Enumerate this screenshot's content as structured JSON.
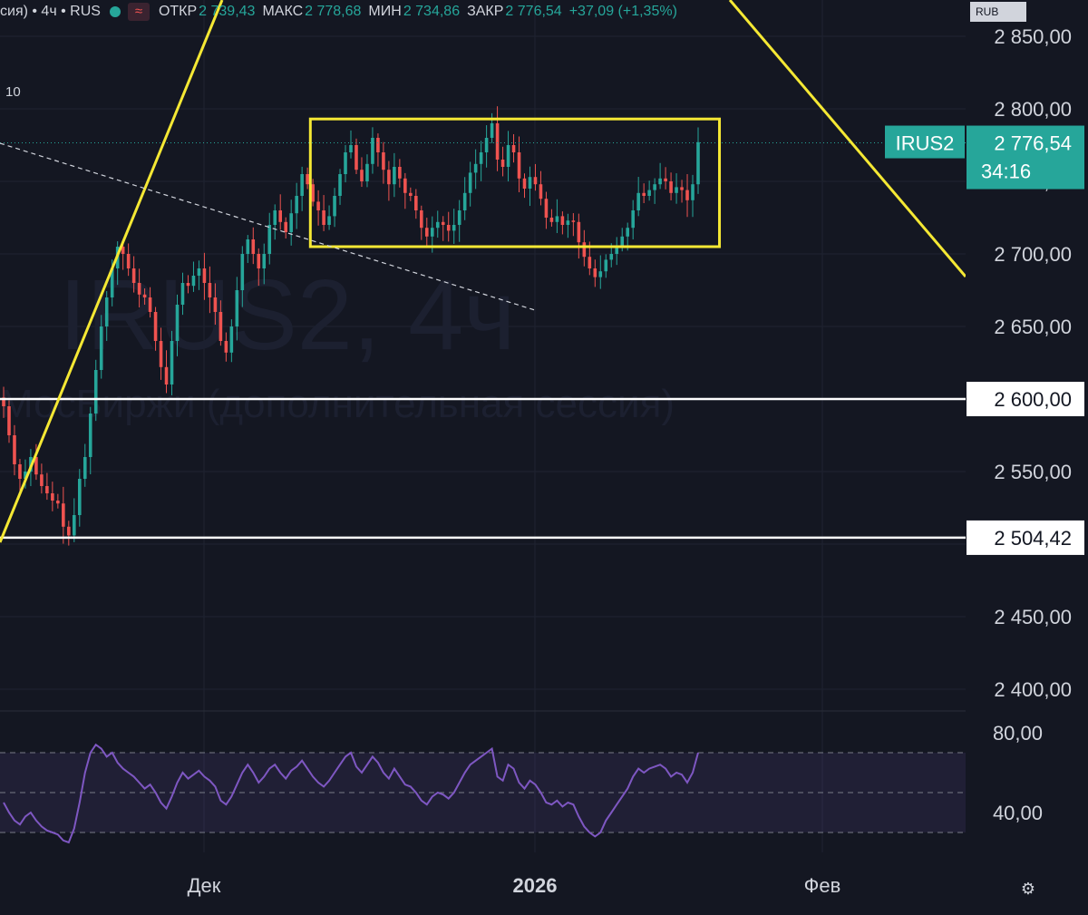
{
  "header": {
    "symbol_text": "сия) • 4ч • RUS",
    "open_label": "ОТКР",
    "open_value": "2 739,43",
    "high_label": "МАКС",
    "high_value": "2 778,68",
    "low_label": "МИН",
    "low_value": "2 734,86",
    "close_label": "ЗАКР",
    "close_value": "2 776,54",
    "change": "+37,09 (+1,35%)"
  },
  "currency": "RUB",
  "indicator_label": "10",
  "watermark": {
    "symbol": "IRUS2, 4ч",
    "exchange": "МосБиржи (дополнительная сессия)"
  },
  "price_tag": {
    "symbol": "IRUS2",
    "price": "2 776,54",
    "countdown": "34:16"
  },
  "level_tags": [
    "2 600,00",
    "2 504,42"
  ],
  "colors": {
    "background": "#141722",
    "up": "#26a69a",
    "down": "#ef5350",
    "annotation": "#f5e834",
    "rsi": "#7e57c2",
    "level": "#ffffff"
  },
  "icons": {
    "settings": "gear-icon"
  },
  "chart_data": [
    {
      "type": "candlestick",
      "title": "",
      "y_ticks": [
        "2 850,00",
        "2 800,00",
        "2 750,00",
        "2 700,00",
        "2 650,00",
        "2 600,00",
        "2 550,00",
        "2 500,00",
        "2 450,00",
        "2 400,00"
      ],
      "y_tick_values": [
        2850,
        2800,
        2750,
        2700,
        2650,
        2600,
        2550,
        2500,
        2450,
        2400
      ],
      "x_labels": [
        "Дек",
        "2026",
        "Фев"
      ],
      "ylim": [
        2385,
        2875
      ],
      "last_price": 2776.54,
      "horizontal_levels": [
        2600.0,
        2504.42
      ],
      "close_series": [
        2595,
        2575,
        2555,
        2545,
        2550,
        2560,
        2548,
        2540,
        2535,
        2530,
        2528,
        2512,
        2506,
        2520,
        2545,
        2560,
        2590,
        2620,
        2650,
        2670,
        2690,
        2705,
        2700,
        2690,
        2680,
        2672,
        2670,
        2660,
        2640,
        2622,
        2610,
        2640,
        2665,
        2680,
        2678,
        2685,
        2690,
        2680,
        2670,
        2660,
        2640,
        2632,
        2650,
        2675,
        2700,
        2710,
        2700,
        2690,
        2700,
        2720,
        2730,
        2722,
        2715,
        2728,
        2740,
        2755,
        2748,
        2736,
        2730,
        2720,
        2726,
        2740,
        2755,
        2770,
        2775,
        2758,
        2750,
        2762,
        2780,
        2770,
        2758,
        2748,
        2760,
        2752,
        2742,
        2740,
        2730,
        2718,
        2712,
        2718,
        2722,
        2720,
        2716,
        2720,
        2730,
        2742,
        2756,
        2762,
        2770,
        2780,
        2790,
        2765,
        2760,
        2775,
        2770,
        2752,
        2745,
        2753,
        2748,
        2738,
        2725,
        2722,
        2726,
        2720,
        2723,
        2722,
        2708,
        2698,
        2690,
        2684,
        2688,
        2696,
        2700,
        2705,
        2712,
        2718,
        2730,
        2742,
        2740,
        2744,
        2748,
        2752,
        2750,
        2742,
        2746,
        2744,
        2737,
        2748,
        2777
      ],
      "annotations": [
        {
          "type": "rectangle",
          "x_from": 0.3,
          "x_to": 0.73,
          "y_from": 2793,
          "y_to": 2705
        },
        {
          "type": "trend-line",
          "from_y": 2470,
          "to_y": 2850
        },
        {
          "type": "trend-line",
          "from_y": 2860,
          "to_y": 2690
        },
        {
          "type": "dashed-line",
          "from_y": 2788,
          "to_y": 2668
        }
      ]
    },
    {
      "type": "line",
      "title": "",
      "y_ticks": [
        "80,00",
        "40,00"
      ],
      "y_tick_values": [
        80,
        40
      ],
      "ylim": [
        20,
        90
      ],
      "bands": [
        70,
        50,
        30
      ],
      "values": [
        45,
        40,
        36,
        34,
        38,
        40,
        36,
        33,
        31,
        30,
        29,
        26,
        25,
        32,
        45,
        60,
        70,
        74,
        72,
        68,
        70,
        65,
        62,
        60,
        58,
        55,
        52,
        54,
        50,
        45,
        42,
        48,
        55,
        60,
        57,
        59,
        61,
        58,
        56,
        53,
        46,
        44,
        48,
        54,
        60,
        64,
        60,
        55,
        58,
        62,
        64,
        60,
        57,
        61,
        63,
        66,
        62,
        58,
        55,
        53,
        56,
        60,
        64,
        68,
        70,
        63,
        60,
        64,
        68,
        65,
        60,
        57,
        62,
        58,
        54,
        53,
        50,
        46,
        44,
        48,
        50,
        49,
        47,
        50,
        55,
        60,
        64,
        66,
        68,
        70,
        72,
        58,
        56,
        64,
        62,
        55,
        52,
        56,
        54,
        50,
        45,
        44,
        46,
        43,
        45,
        44,
        38,
        33,
        30,
        28,
        30,
        36,
        40,
        44,
        48,
        52,
        58,
        62,
        60,
        62,
        63,
        64,
        62,
        58,
        60,
        59,
        55,
        60,
        70
      ]
    }
  ]
}
